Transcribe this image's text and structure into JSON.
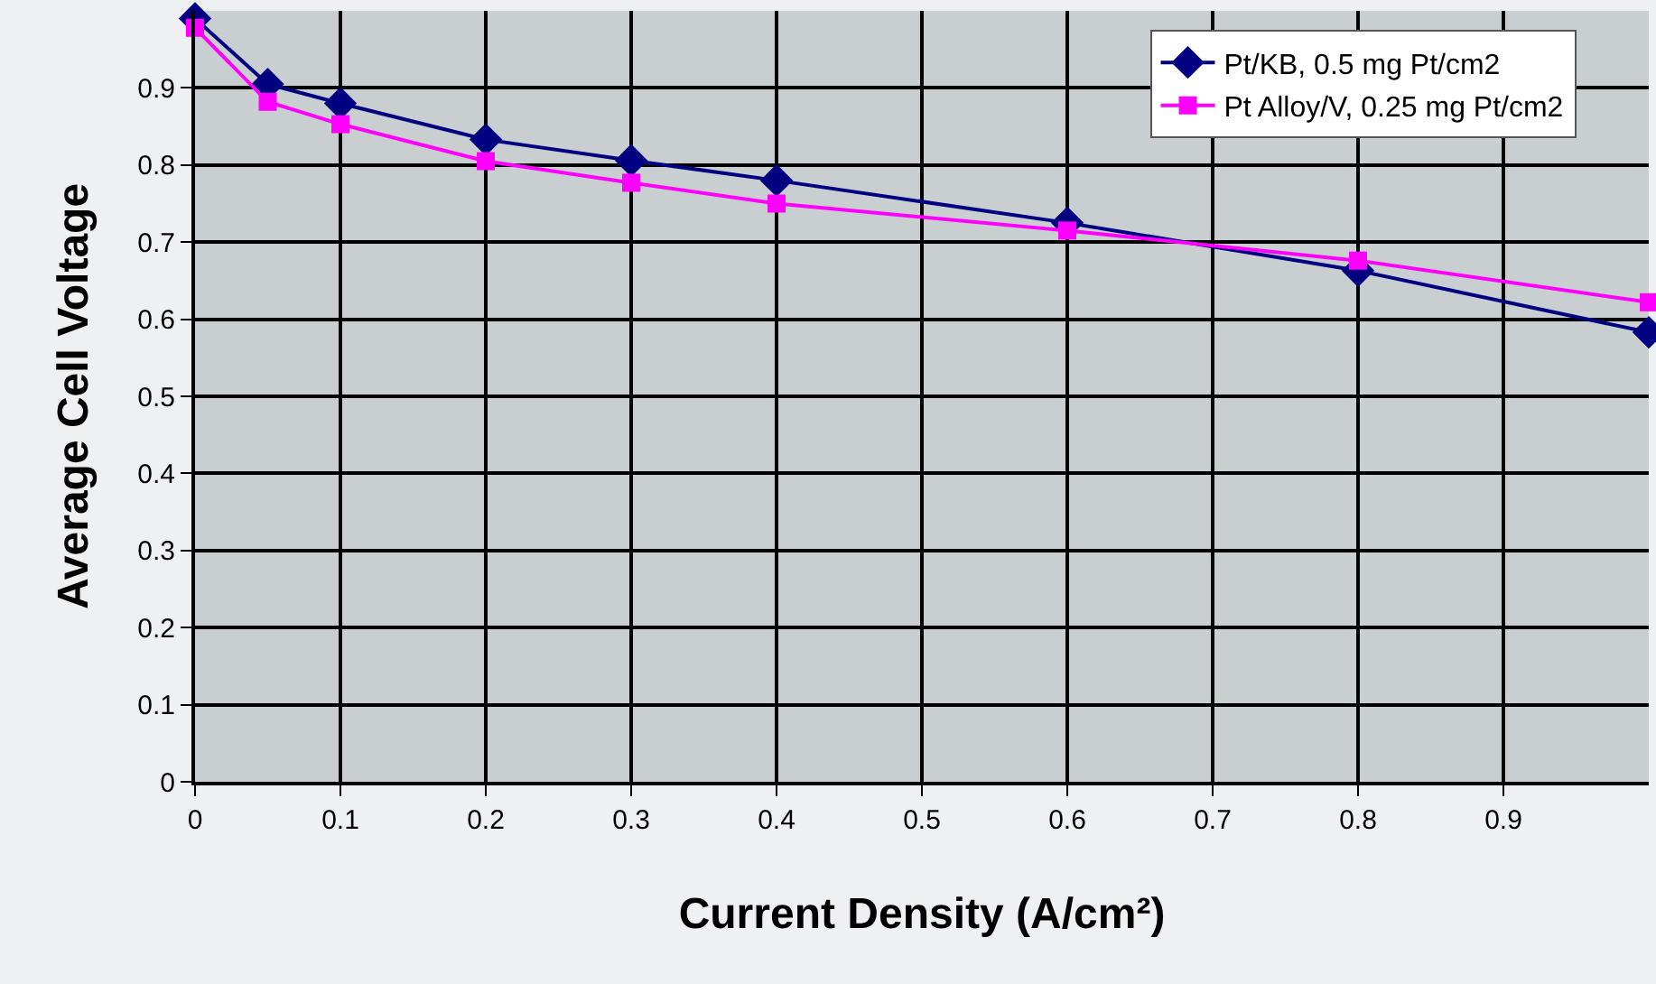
{
  "chart_data": {
    "type": "line",
    "xlabel": "Current Density (A/cm²)",
    "ylabel": "Average Cell Voltage",
    "xlim": [
      0,
      1.0
    ],
    "xticks": [
      0,
      0.1,
      0.2,
      0.3,
      0.4,
      0.5,
      0.6,
      0.7,
      0.8,
      0.9
    ],
    "ylim": [
      0,
      1.0
    ],
    "yticks": [
      0,
      0.1,
      0.2,
      0.3,
      0.4,
      0.5,
      0.6,
      0.7,
      0.8,
      0.9
    ],
    "grid": true,
    "legend": "top right",
    "series": [
      {
        "name": "Pt/KB, 0.5 mg Pt/cm2",
        "color": "#000080",
        "marker": "diamond",
        "x": [
          0,
          0.05,
          0.1,
          0.2,
          0.3,
          0.4,
          0.6,
          0.8,
          1.0
        ],
        "values": [
          0.99,
          0.905,
          0.88,
          0.833,
          0.806,
          0.78,
          0.725,
          0.663,
          0.583
        ]
      },
      {
        "name": "Pt Alloy/V, 0.25 mg Pt/cm2",
        "color": "#ff00ff",
        "marker": "square",
        "x": [
          0,
          0.05,
          0.1,
          0.2,
          0.3,
          0.4,
          0.6,
          0.8,
          1.0
        ],
        "values": [
          0.978,
          0.882,
          0.853,
          0.805,
          0.777,
          0.75,
          0.715,
          0.676,
          0.622
        ]
      }
    ]
  }
}
